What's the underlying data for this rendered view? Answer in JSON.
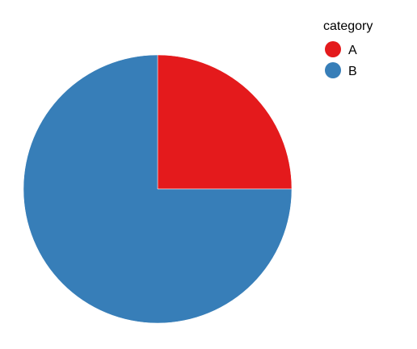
{
  "chart_data": {
    "type": "pie",
    "categories": [
      "A",
      "B"
    ],
    "values": [
      25,
      75
    ],
    "colors": {
      "A": "#e41a1c",
      "B": "#377eb8"
    },
    "legend": {
      "title": "category",
      "position": "top-right",
      "entries": [
        "A",
        "B"
      ]
    },
    "start_angle_deg": 0,
    "direction": "clockwise"
  }
}
